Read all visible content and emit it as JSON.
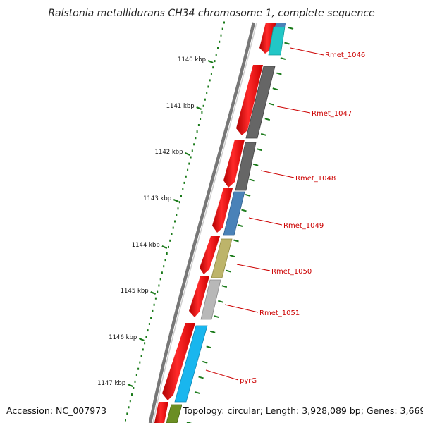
{
  "title": "Ralstonia metallidurans CH34 chromosome 1, complete sequence",
  "accession_text": "Accession: NC_007973",
  "topology_text": "Topology: circular; Length: 3,928,089 bp; Genes: 3,669",
  "scale_labels": [
    "1140 kbp",
    "1141 kbp",
    "1142 kbp",
    "1143 kbp",
    "1144 kbp",
    "1145 kbp",
    "1146 kbp",
    "1147 kbp"
  ],
  "genes": [
    {
      "label": "Rmet_1046",
      "color": "#22c6c6"
    },
    {
      "label": "Rmet_1047",
      "color": "#666666"
    },
    {
      "label": "Rmet_1048",
      "color": "#666666"
    },
    {
      "label": "Rmet_1049",
      "color": "#4a82b8"
    },
    {
      "label": "Rmet_1050",
      "color": "#bdb46a"
    },
    {
      "label": "Rmet_1051",
      "color": "#b8b8b8"
    },
    {
      "label": "pyrG",
      "color": "#19b6ee"
    },
    {
      "label": "",
      "color": "#6b8e23"
    }
  ],
  "colors": {
    "cds_strand": "#ee0000",
    "backbone": "#888888",
    "label_line": "#cc0000",
    "ticks": "#1a7a1a"
  }
}
